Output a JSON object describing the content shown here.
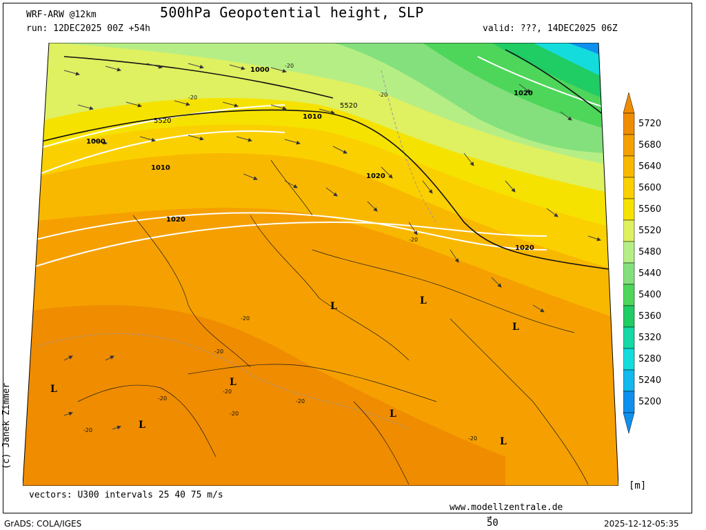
{
  "header": {
    "model": "WRF-ARW @12km",
    "title": "500hPa Geopotential height, SLP",
    "run": "run: 12DEC2025 00Z +54h",
    "valid": "valid: ???, 14DEC2025 06Z"
  },
  "footer": {
    "vectors": "vectors: U300 intervals 25 40 75 m/s",
    "url": "www.modellzentrale.de",
    "software": "GrADS: COLA/IGES",
    "timestamp": "2025-12-12-05:35",
    "ref_vector": "50",
    "author": "(c) Janek Zimmer"
  },
  "colorbar": {
    "unit": "[m]",
    "levels": [
      "5720",
      "5680",
      "5640",
      "5600",
      "5560",
      "5520",
      "5480",
      "5440",
      "5400",
      "5360",
      "5320",
      "5280",
      "5240",
      "5200"
    ],
    "colors": [
      "#f08c00",
      "#f5a000",
      "#f9b800",
      "#fbd000",
      "#f6e200",
      "#dff060",
      "#b6ee86",
      "#84e07c",
      "#4ed65a",
      "#20cc64",
      "#16d8a4",
      "#14dcdc",
      "#12b8ee",
      "#1090ee"
    ]
  },
  "map": {
    "isobar_labels": [
      "1000",
      "1010",
      "1020",
      "1020",
      "1020",
      "1020",
      "1010",
      "1000"
    ],
    "height_labels": [
      "5520",
      "5520"
    ],
    "temp_labels": [
      "-20",
      "-20",
      "-20",
      "-20",
      "-20",
      "-20",
      "-20",
      "-20",
      "-20",
      "-20",
      "-20",
      "-20"
    ],
    "lows": [
      "L",
      "L",
      "L",
      "L",
      "L",
      "L",
      "L",
      "L"
    ]
  }
}
